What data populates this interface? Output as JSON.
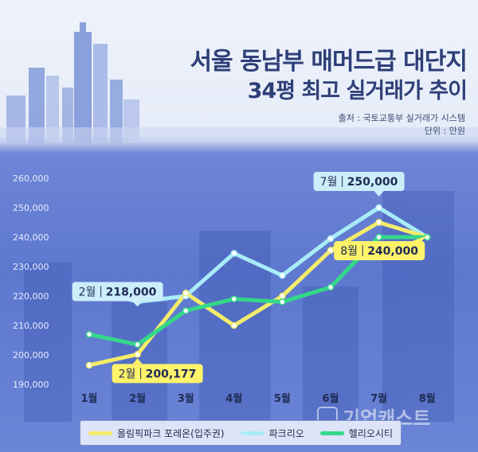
{
  "header": {
    "title_line1": "서울 동남부 매머드급 대단지",
    "title_line2": "34평 최고 실거래가 추이",
    "source": "출처 : 국토교통부 실거래가 시스템",
    "unit": "단위 : 만원"
  },
  "watermark": "기업캐스트",
  "colors": {
    "olympic": "#f4ec6a",
    "parkrio": "#a9ecf8",
    "helio": "#34d888",
    "callout_blue": "#ccedfa",
    "callout_yellow": "#fff36a"
  },
  "chart_data": {
    "type": "line",
    "title": "",
    "xlabel": "",
    "ylabel": "",
    "categories": [
      "1월",
      "2월",
      "3월",
      "4월",
      "5월",
      "6월",
      "7월",
      "8월"
    ],
    "ylim": [
      190000,
      260000
    ],
    "yticks": [
      "190,000",
      "200,000",
      "210,000",
      "220,000",
      "230,000",
      "240,000",
      "250,000",
      "260,000"
    ],
    "legend_position": "bottom",
    "grid": false,
    "series": [
      {
        "name": "올림픽파크 포레온(입주권)",
        "color_key": "olympic",
        "values": [
          196500,
          200177,
          221000,
          210000,
          220000,
          235500,
          245000,
          240000
        ]
      },
      {
        "name": "파크리오",
        "color_key": "parkrio",
        "values": [
          223000,
          218000,
          220000,
          234500,
          227000,
          239500,
          250000,
          240000
        ]
      },
      {
        "name": "헬리오시티",
        "color_key": "helio",
        "values": [
          207000,
          203500,
          215000,
          219000,
          218000,
          223000,
          240000,
          240000
        ]
      }
    ],
    "annotations": [
      {
        "month_label": "2월",
        "value_label": "218,000",
        "series_index": 1,
        "point_index": 1,
        "style": "blue"
      },
      {
        "month_label": "2월",
        "value_label": "200,177",
        "series_index": 0,
        "point_index": 1,
        "style": "yellow"
      },
      {
        "month_label": "7월",
        "value_label": "250,000",
        "series_index": 1,
        "point_index": 6,
        "style": "blue"
      },
      {
        "month_label": "8월",
        "value_label": "240,000",
        "series_index": 2,
        "point_index": 7,
        "style": "yellow"
      }
    ]
  }
}
